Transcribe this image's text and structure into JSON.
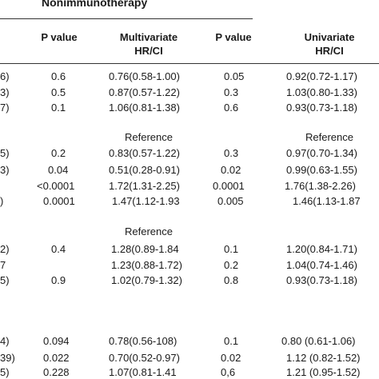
{
  "table": {
    "group_title": "Nonimmunotherapy",
    "headers": {
      "p_value_1": "P value",
      "multivariate": [
        "Multivariate",
        "HR/CI"
      ],
      "p_value_2": "P value",
      "univariate": [
        "Univariate",
        "HR/CI"
      ]
    },
    "reference_label": "Reference",
    "rows": [
      {
        "stub": "6)",
        "p1": "0.6",
        "hr1": "0.76(0.58-1.00)",
        "p2": "0.05",
        "hr2": "0.92(0.72-1.17)"
      },
      {
        "stub": "3)",
        "p1": "0.5",
        "hr1": "0.87(0.57-1.22)",
        "p2": "0.3",
        "hr2": "1.03(0.80-1.33)"
      },
      {
        "stub": "7)",
        "p1": "0.1",
        "hr1": "1.06(0.81-1.38)",
        "p2": "0.6",
        "hr2": "0.93(0.73-1.18)"
      },
      {
        "stub": "5)",
        "p1": "0.2",
        "hr1": "0.83(0.57-1.22)",
        "p2": "0.3",
        "hr2": "0.97(0.70-1.34)"
      },
      {
        "stub": "3)",
        "p1": "0.04",
        "hr1": "0.51(0.28-0.91)",
        "p2": "0.02",
        "hr2": "0.99(0.63-1.55)"
      },
      {
        "stub": "",
        "p1": "<0.0001",
        "hr1": "1.72(1.31-2.25)",
        "p2": "0.0001",
        "hr2": "1.76(1.38-2.26)"
      },
      {
        "stub": ")",
        "p1": "0.0001",
        "hr1": "1.47(1.12-1.93",
        "p2": "0.005",
        "hr2": "1.46(1.13-1.87"
      },
      {
        "stub": "2)",
        "p1": "0.4",
        "hr1": "1.28(0.89-1.84",
        "p2": "0.1",
        "hr2": "1.20(0.84-1.71)"
      },
      {
        "stub": "7",
        "p1": "",
        "hr1": "1.23(0.88-1.72)",
        "p2": "0.2",
        "hr2": "1.04(0.74-1.46)"
      },
      {
        "stub": "5)",
        "p1": "0.9",
        "hr1": "1.02(0.79-1.32)",
        "p2": "0.8",
        "hr2": "0.93(0.73-1.18)"
      },
      {
        "stub": "4)",
        "p1": "0.094",
        "hr1": "0.78(0.56-108)",
        "p2": "0.1",
        "hr2": "0.80 (0.61-1.06)"
      },
      {
        "stub": "39)",
        "p1": "0.022",
        "hr1": "0.70(0.52-0.97)",
        "p2": "0.02",
        "hr2": "1.12 (0.82-1.52)"
      },
      {
        "stub": "5)",
        "p1": "0.228",
        "hr1": "1.07(0.81-1.41",
        "p2": "0,6",
        "hr2": "1.21 (0.95-1.52)"
      }
    ]
  }
}
